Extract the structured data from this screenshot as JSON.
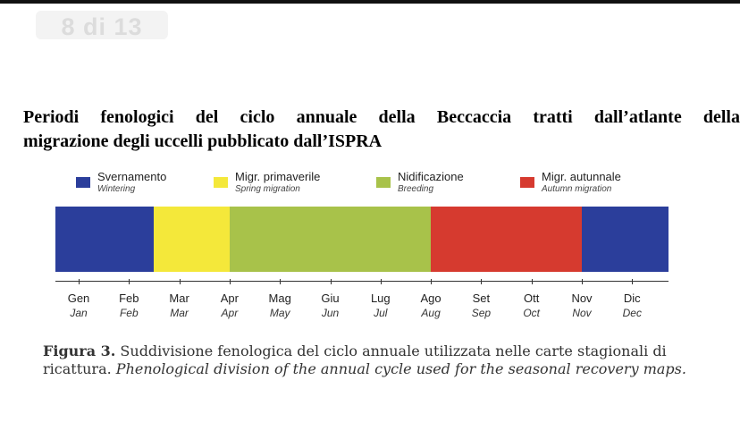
{
  "page_counter": "8 di 13",
  "title": {
    "line1": "Periodi fenologici del ciclo annuale della Beccaccia tratti dall’atlante della",
    "line2": "migrazione degli uccelli pubblicato dall’ISPRA"
  },
  "legend": [
    {
      "label": "Svernamento",
      "sub": "Wintering",
      "color": "#2b3e9b"
    },
    {
      "label": "Migr. primaverile",
      "sub": "Spring migration",
      "color": "#f4e83a"
    },
    {
      "label": "Nidificazione",
      "sub": "Breeding",
      "color": "#a8c24a"
    },
    {
      "label": "Migr. autunnale",
      "sub": "Autumn migration",
      "color": "#d63a2f"
    }
  ],
  "phases": [
    {
      "phase": "Svernamento",
      "start_month": 1,
      "end_month": 2.5
    },
    {
      "phase": "Migr. primaverile",
      "start_month": 2.5,
      "end_month": 4
    },
    {
      "phase": "Nidificazione",
      "start_month": 4,
      "end_month": 8
    },
    {
      "phase": "Migr. autunnale",
      "start_month": 8,
      "end_month": 11
    },
    {
      "phase": "Svernamento",
      "start_month": 11,
      "end_month": 12.3
    }
  ],
  "months": [
    {
      "it": "Gen",
      "en": "Jan"
    },
    {
      "it": "Feb",
      "en": "Feb"
    },
    {
      "it": "Mar",
      "en": "Mar"
    },
    {
      "it": "Apr",
      "en": "Apr"
    },
    {
      "it": "Mag",
      "en": "May"
    },
    {
      "it": "Giu",
      "en": "Jun"
    },
    {
      "it": "Lug",
      "en": "Jul"
    },
    {
      "it": "Ago",
      "en": "Aug"
    },
    {
      "it": "Set",
      "en": "Sep"
    },
    {
      "it": "Ott",
      "en": "Oct"
    },
    {
      "it": "Nov",
      "en": "Nov"
    },
    {
      "it": "Dic",
      "en": "Dec"
    }
  ],
  "caption": {
    "label": "Figura 3.",
    "text_it": "Suddivisione fenologica del ciclo annuale utilizzata nelle carte stagionali di ricattura.",
    "text_en": "Phenological division of the annual cycle used for the seasonal recovery maps."
  }
}
